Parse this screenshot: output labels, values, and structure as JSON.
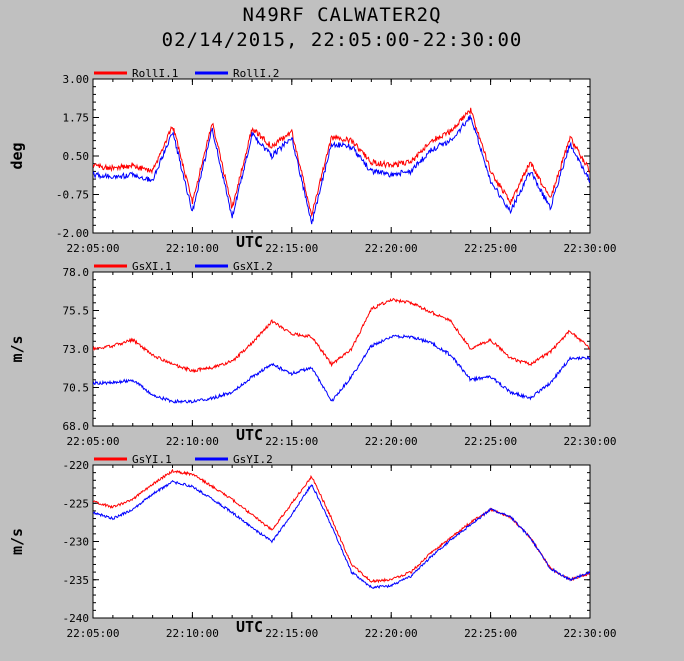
{
  "title": "N49RF CALWATER2Q",
  "subtitle": "02/14/2015, 22:05:00-22:30:00",
  "colors": {
    "series1": "#ff0000",
    "series2": "#0000ff",
    "background": "#c0c0c0",
    "plot_bg": "#ffffff"
  },
  "chart_data": [
    {
      "type": "line",
      "ylabel": "deg",
      "xlabel": "UTC",
      "ylim": [
        -2.0,
        3.0
      ],
      "yticks": [
        "3.00",
        "1.75",
        "0.50",
        "-0.75",
        "-2.00"
      ],
      "xticks": [
        "22:05:00",
        "22:10:00",
        "22:15:00",
        "22:20:00",
        "22:25:00",
        "22:30:00"
      ],
      "legend_position": "top-left",
      "grid": false,
      "series": [
        {
          "name": "RollI.1",
          "color": "#ff0000",
          "x": [
            "22:05",
            "22:06",
            "22:07",
            "22:08",
            "22:09",
            "22:10",
            "22:11",
            "22:12",
            "22:13",
            "22:14",
            "22:15",
            "22:16",
            "22:17",
            "22:18",
            "22:19",
            "22:20",
            "22:21",
            "22:22",
            "22:23",
            "22:24",
            "22:25",
            "22:26",
            "22:27",
            "22:28",
            "22:29",
            "22:30"
          ],
          "values": [
            0.2,
            0.1,
            0.2,
            0.0,
            1.5,
            -1.0,
            1.6,
            -1.2,
            1.4,
            0.8,
            1.3,
            -1.4,
            1.1,
            1.0,
            0.3,
            0.2,
            0.3,
            1.0,
            1.3,
            2.0,
            0.0,
            -1.0,
            0.3,
            -0.9,
            1.1,
            0.0
          ]
        },
        {
          "name": "RollI.2",
          "color": "#0000ff",
          "x": [
            "22:05",
            "22:06",
            "22:07",
            "22:08",
            "22:09",
            "22:10",
            "22:11",
            "22:12",
            "22:13",
            "22:14",
            "22:15",
            "22:16",
            "22:17",
            "22:18",
            "22:19",
            "22:20",
            "22:21",
            "22:22",
            "22:23",
            "22:24",
            "22:25",
            "22:26",
            "22:27",
            "22:28",
            "22:29",
            "22:30"
          ],
          "values": [
            -0.1,
            -0.2,
            -0.1,
            -0.3,
            1.3,
            -1.3,
            1.4,
            -1.5,
            1.2,
            0.5,
            1.1,
            -1.7,
            0.9,
            0.8,
            0.0,
            -0.1,
            0.0,
            0.7,
            1.0,
            1.8,
            -0.3,
            -1.3,
            0.0,
            -1.2,
            0.9,
            -0.3
          ]
        }
      ]
    },
    {
      "type": "line",
      "ylabel": "m/s",
      "xlabel": "UTC",
      "ylim": [
        68.0,
        78.0
      ],
      "yticks": [
        "78.0",
        "75.5",
        "73.0",
        "70.5",
        "68.0"
      ],
      "xticks": [
        "22:05:00",
        "22:10:00",
        "22:15:00",
        "22:20:00",
        "22:25:00",
        "22:30:00"
      ],
      "legend_position": "top-left",
      "grid": false,
      "series": [
        {
          "name": "GsXI.1",
          "color": "#ff0000",
          "x": [
            "22:05",
            "22:06",
            "22:07",
            "22:08",
            "22:09",
            "22:10",
            "22:11",
            "22:12",
            "22:13",
            "22:14",
            "22:15",
            "22:16",
            "22:17",
            "22:18",
            "22:19",
            "22:20",
            "22:21",
            "22:22",
            "22:23",
            "22:24",
            "22:25",
            "22:26",
            "22:27",
            "22:28",
            "22:29",
            "22:30"
          ],
          "values": [
            73.0,
            73.2,
            73.6,
            72.6,
            72.0,
            71.6,
            71.8,
            72.2,
            73.4,
            74.8,
            74.0,
            73.8,
            72.0,
            73.0,
            75.6,
            76.2,
            76.0,
            75.4,
            74.8,
            73.0,
            73.6,
            72.4,
            72.0,
            72.8,
            74.2,
            73.0
          ]
        },
        {
          "name": "GsXI.2",
          "color": "#0000ff",
          "x": [
            "22:05",
            "22:06",
            "22:07",
            "22:08",
            "22:09",
            "22:10",
            "22:11",
            "22:12",
            "22:13",
            "22:14",
            "22:15",
            "22:16",
            "22:17",
            "22:18",
            "22:19",
            "22:20",
            "22:21",
            "22:22",
            "22:23",
            "22:24",
            "22:25",
            "22:26",
            "22:27",
            "22:28",
            "22:29",
            "22:30"
          ],
          "values": [
            70.8,
            70.8,
            71.0,
            70.0,
            69.6,
            69.6,
            69.8,
            70.2,
            71.2,
            72.0,
            71.4,
            71.8,
            69.6,
            71.2,
            73.2,
            73.8,
            73.8,
            73.4,
            72.6,
            71.0,
            71.2,
            70.2,
            69.8,
            70.8,
            72.4,
            72.4
          ]
        }
      ]
    },
    {
      "type": "line",
      "ylabel": "m/s",
      "xlabel": "UTC",
      "ylim": [
        -240,
        -220
      ],
      "yticks": [
        "-220",
        "-225",
        "-230",
        "-235",
        "-240"
      ],
      "xticks": [
        "22:05:00",
        "22:10:00",
        "22:15:00",
        "22:20:00",
        "22:25:00",
        "22:30:00"
      ],
      "legend_position": "top-left",
      "grid": false,
      "series": [
        {
          "name": "GsYI.1",
          "color": "#ff0000",
          "x": [
            "22:05",
            "22:06",
            "22:07",
            "22:08",
            "22:09",
            "22:10",
            "22:11",
            "22:12",
            "22:13",
            "22:14",
            "22:15",
            "22:16",
            "22:17",
            "22:18",
            "22:19",
            "22:20",
            "22:21",
            "22:22",
            "22:23",
            "22:24",
            "22:25",
            "22:26",
            "22:27",
            "22:28",
            "22:29",
            "22:30"
          ],
          "values": [
            -224.8,
            -225.5,
            -224.5,
            -222.5,
            -220.8,
            -221.2,
            -222.8,
            -224.5,
            -226.5,
            -228.5,
            -225.0,
            -221.5,
            -227.0,
            -233.0,
            -235.2,
            -235.0,
            -234.0,
            -231.5,
            -229.5,
            -227.5,
            -225.8,
            -226.8,
            -229.5,
            -233.5,
            -235.0,
            -234.2
          ]
        },
        {
          "name": "GsYI.2",
          "color": "#0000ff",
          "x": [
            "22:05",
            "22:06",
            "22:07",
            "22:08",
            "22:09",
            "22:10",
            "22:11",
            "22:12",
            "22:13",
            "22:14",
            "22:15",
            "22:16",
            "22:17",
            "22:18",
            "22:19",
            "22:20",
            "22:21",
            "22:22",
            "22:23",
            "22:24",
            "22:25",
            "22:26",
            "22:27",
            "22:28",
            "22:29",
            "22:30"
          ],
          "values": [
            -226.2,
            -227.0,
            -225.8,
            -223.8,
            -222.2,
            -222.8,
            -224.5,
            -226.2,
            -228.2,
            -230.0,
            -226.5,
            -222.5,
            -228.0,
            -234.0,
            -236.0,
            -235.8,
            -234.5,
            -232.0,
            -229.8,
            -227.8,
            -225.8,
            -226.8,
            -229.5,
            -233.5,
            -235.0,
            -234.0
          ]
        }
      ]
    }
  ]
}
